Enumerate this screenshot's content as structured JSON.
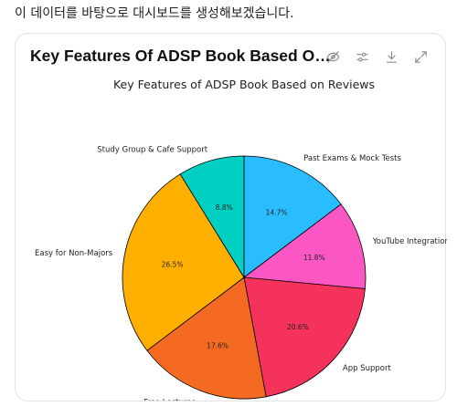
{
  "intro_text": "이 데이터를 바탕으로 대시보드를 생성해보겠습니다.",
  "card": {
    "title": "Key Features Of ADSP Book Based On R...",
    "toolbar": [
      {
        "name": "hide-labels-button",
        "icon": "eye-slash-icon"
      },
      {
        "name": "settings-button",
        "icon": "sliders-icon"
      },
      {
        "name": "download-button",
        "icon": "download-icon"
      },
      {
        "name": "expand-button",
        "icon": "expand-icon"
      }
    ]
  },
  "chart_data": {
    "type": "pie",
    "title": "Key Features of ADSP Book Based on Reviews",
    "start_angle_deg": 90,
    "direction": "clockwise",
    "slices": [
      {
        "label": "Past Exams & Mock Tests",
        "value": 14.7,
        "pct_label": "14.7%",
        "color": "#29BCFF"
      },
      {
        "label": "YouTube Integration",
        "value": 11.8,
        "pct_label": "11.8%",
        "color": "#FA57C3"
      },
      {
        "label": "App Support",
        "value": 20.6,
        "pct_label": "20.6%",
        "color": "#F5325B"
      },
      {
        "label": "Free Lectures",
        "value": 17.6,
        "pct_label": "17.6%",
        "color": "#F46A23"
      },
      {
        "label": "Easy for Non-Majors",
        "value": 26.5,
        "pct_label": "26.5%",
        "color": "#FFAF00"
      },
      {
        "label": "Study Group & Cafe Support",
        "value": 8.8,
        "pct_label": "8.8%",
        "color": "#00CFC1"
      }
    ]
  }
}
